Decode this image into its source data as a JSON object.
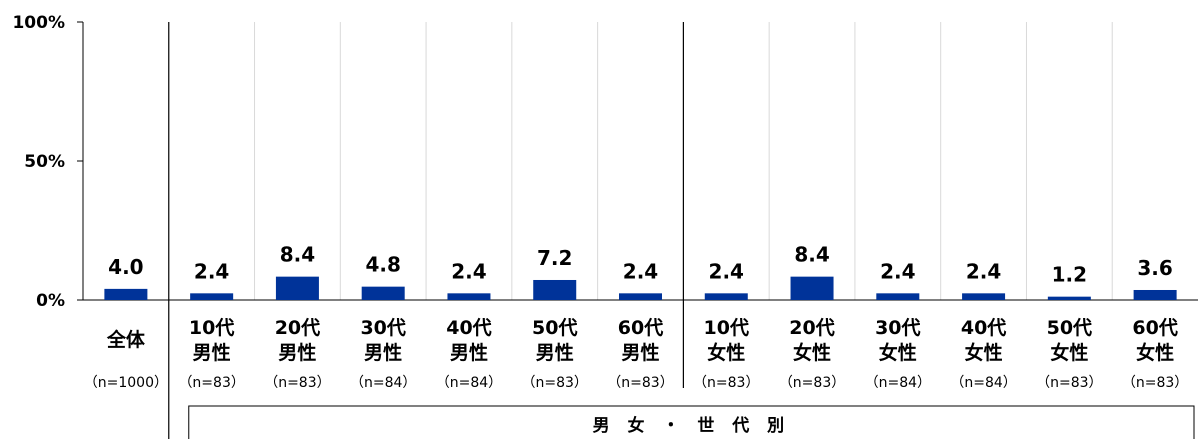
{
  "chart_data": {
    "type": "bar",
    "categories": [
      {
        "line1": "全体",
        "line2": "",
        "n": "（n=1000）"
      },
      {
        "line1": "10代",
        "line2": "男性",
        "n": "（n=83）"
      },
      {
        "line1": "20代",
        "line2": "男性",
        "n": "（n=83）"
      },
      {
        "line1": "30代",
        "line2": "男性",
        "n": "（n=84）"
      },
      {
        "line1": "40代",
        "line2": "男性",
        "n": "（n=84）"
      },
      {
        "line1": "50代",
        "line2": "男性",
        "n": "（n=83）"
      },
      {
        "line1": "60代",
        "line2": "男性",
        "n": "（n=83）"
      },
      {
        "line1": "10代",
        "line2": "女性",
        "n": "（n=83）"
      },
      {
        "line1": "20代",
        "line2": "女性",
        "n": "（n=83）"
      },
      {
        "line1": "30代",
        "line2": "女性",
        "n": "（n=84）"
      },
      {
        "line1": "40代",
        "line2": "女性",
        "n": "（n=84）"
      },
      {
        "line1": "50代",
        "line2": "女性",
        "n": "（n=83）"
      },
      {
        "line1": "60代",
        "line2": "女性",
        "n": "（n=83）"
      }
    ],
    "values": [
      4.0,
      2.4,
      8.4,
      4.8,
      2.4,
      7.2,
      2.4,
      2.4,
      8.4,
      2.4,
      2.4,
      1.2,
      3.6
    ],
    "value_labels": [
      "4.0",
      "2.4",
      "8.4",
      "4.8",
      "2.4",
      "7.2",
      "2.4",
      "2.4",
      "8.4",
      "2.4",
      "2.4",
      "1.2",
      "3.6"
    ],
    "ylim": [
      0,
      100
    ],
    "yticks": [
      "0%",
      "50%",
      "100%"
    ],
    "ytick_values": [
      0,
      50,
      100
    ],
    "bar_color": "#003399",
    "grid": true,
    "group_label": "男 女 ・ 世 代 別"
  }
}
